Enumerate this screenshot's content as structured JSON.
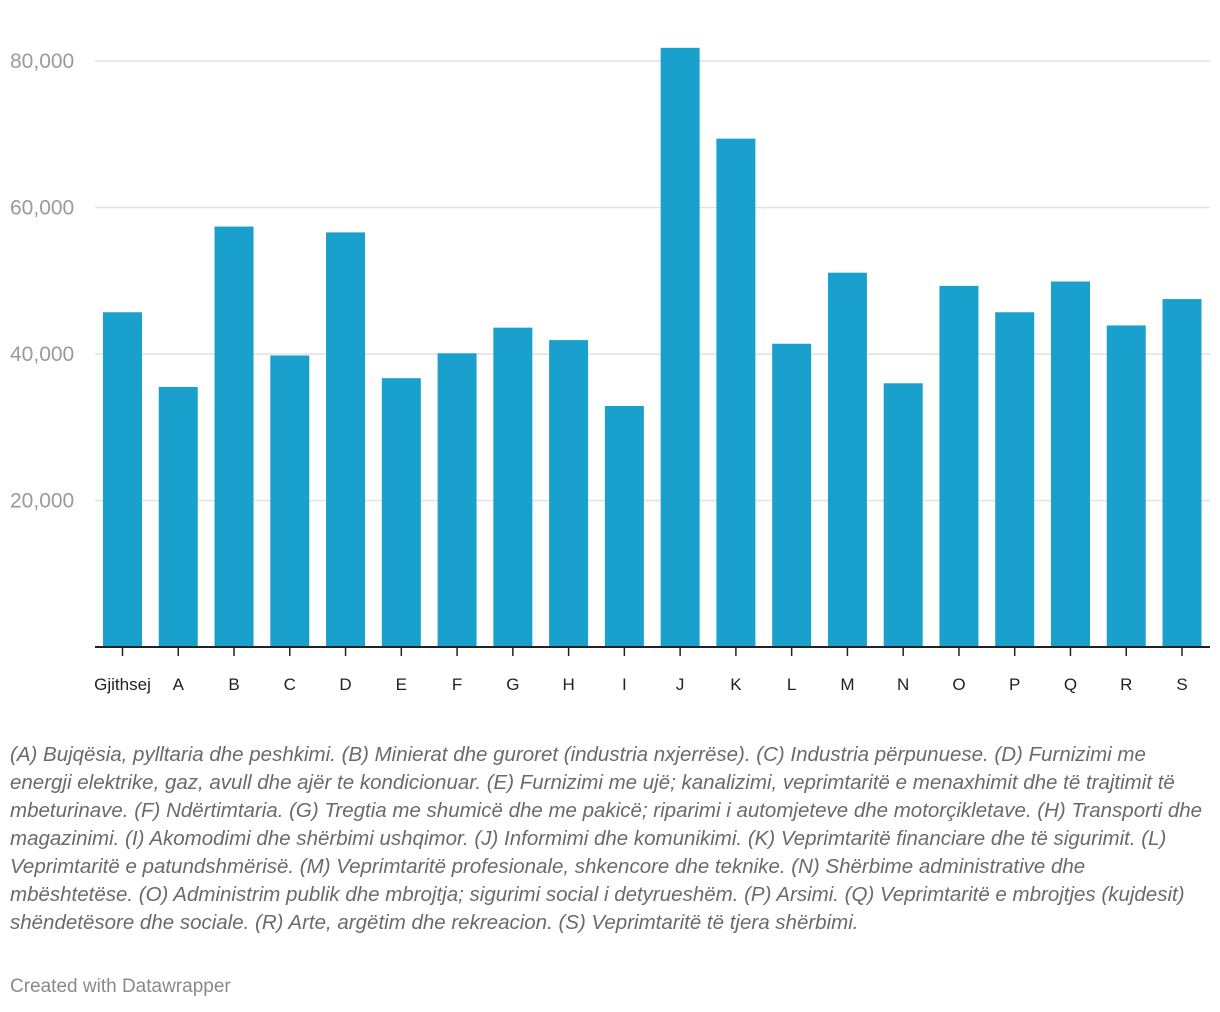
{
  "chart_data": {
    "type": "bar",
    "categories": [
      "Gjithsej",
      "A",
      "B",
      "C",
      "D",
      "E",
      "F",
      "G",
      "H",
      "I",
      "J",
      "K",
      "L",
      "M",
      "N",
      "O",
      "P",
      "Q",
      "R",
      "S"
    ],
    "values": [
      45700,
      35500,
      57400,
      39800,
      56600,
      36700,
      40100,
      43600,
      41900,
      32900,
      81800,
      69400,
      41400,
      51100,
      36000,
      49300,
      45700,
      49900,
      43900,
      47500
    ],
    "ylim": [
      0,
      80000
    ],
    "yticks": [
      20000,
      40000,
      60000,
      80000
    ],
    "ytick_labels": [
      "20,000",
      "40,000",
      "60,000",
      "80,000"
    ],
    "grid": true,
    "bar_color": "#1aa0cc",
    "notes": "(A) Bujqësia, pylltaria dhe peshkimi. (B) Minierat dhe guroret (industria nxjerrëse). (C) Industria përpunuese. (D) Furnizimi me energji elektrike, gaz, avull dhe ajër te kondicionuar. (E) Furnizimi me ujë; kanalizimi, veprimtaritë e menaxhimit dhe të trajtimit të mbeturinave. (F) Ndërtimtaria. (G) Tregtia me shumicë dhe me pakicë; riparimi i automjeteve dhe motorçikletave. (H) Transporti dhe magazinimi. (I) Akomodimi dhe shërbimi ushqimor. (J) Informimi dhe komunikimi. (K) Veprimtaritë financiare dhe të sigurimit. (L) Veprimtaritë e patundshmërisë. (M) Veprimtaritë profesionale, shkencore dhe teknike. (N) Shërbime administrative dhe mbështetëse. (O) Administrim publik dhe mbrojtja; sigurimi social i detyrueshëm. (P) Arsimi. (Q) Veprimtaritë e mbrojtjes (kujdesit) shëndetësore dhe sociale. (R) Arte, argëtim dhe rekreacion. (S) Veprimtaritë të tjera shërbimi."
  },
  "footer": {
    "credit": "Created with Datawrapper"
  }
}
